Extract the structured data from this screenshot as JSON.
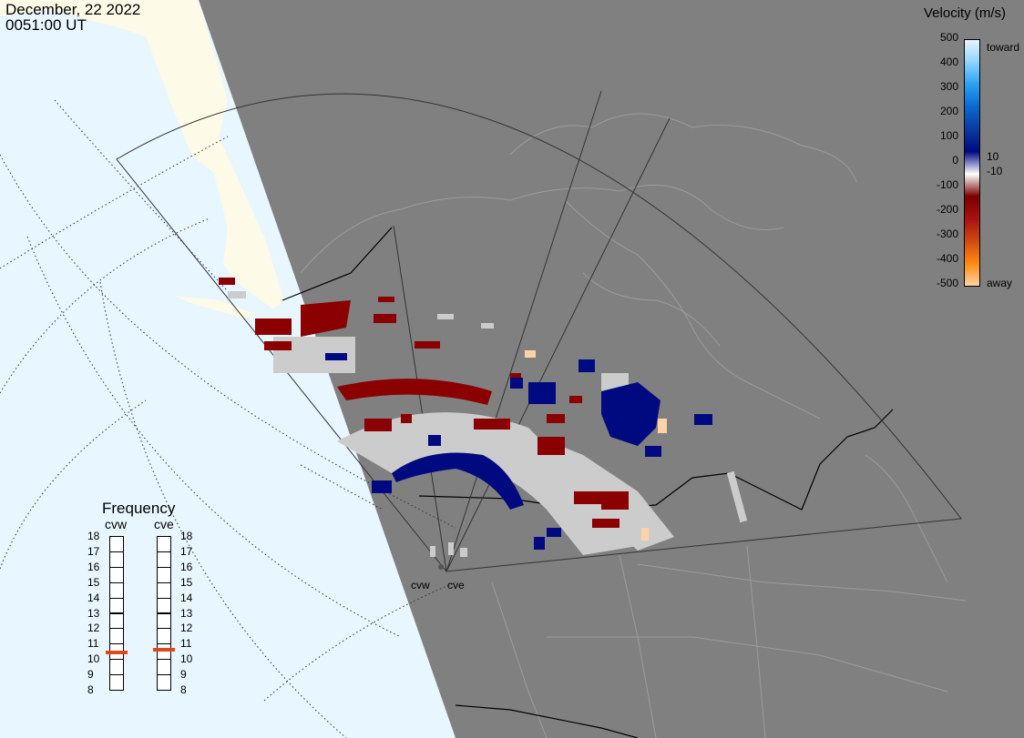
{
  "header": {
    "date": "December, 22 2022",
    "time": "0051:00 UT"
  },
  "colorbar": {
    "title": "Velocity (m/s)",
    "ticks": [
      "500",
      "400",
      "300",
      "200",
      "100",
      "0",
      "-100",
      "-200",
      "-300",
      "-400",
      "-500"
    ],
    "label_toward": "toward",
    "label_away": "away",
    "label_pos": "10",
    "label_neg": "-10",
    "gradient_colors": [
      "#e6f4ff",
      "#8fd3ff",
      "#2aa0ef",
      "#0a68d0",
      "#0a3aa0",
      "#000a80",
      "#ffffff",
      "#7a0000",
      "#a81010",
      "#d04a10",
      "#ff8a10",
      "#ffd2a8"
    ]
  },
  "frequency": {
    "title": "Frequency",
    "radars": [
      "cvw",
      "cve"
    ],
    "mhz_labels": [
      "18",
      "17",
      "16",
      "15",
      "14",
      "13",
      "12",
      "11",
      "10",
      "9",
      "8"
    ],
    "cvw_mhz": 10.4,
    "cve_mhz": 10.6
  },
  "radar_labels": [
    "cvw",
    "cve"
  ],
  "colors": {
    "ocean": "#e8f6ff",
    "land_daylight": "#fdfbe8",
    "night_shade": "#808080",
    "borders": "#9c9c9c",
    "positive_velocity": "#000a80",
    "negative_velocity": "#8b0000",
    "ground_scatter": "#cccccc",
    "freq_marker": "#e0481a"
  }
}
